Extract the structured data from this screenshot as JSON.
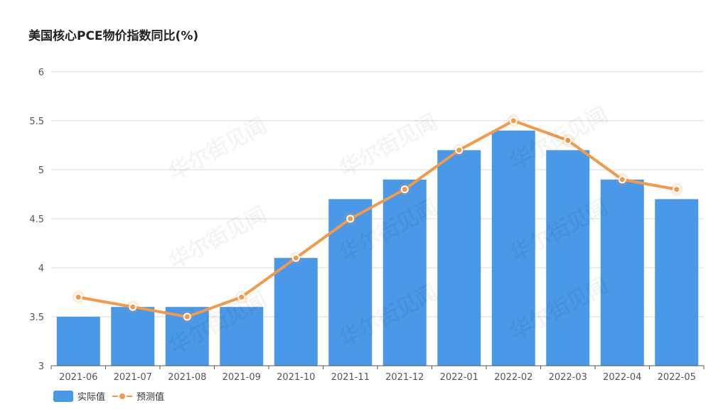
{
  "watermark": "华尔街见闻",
  "colors": {
    "bar": "#4a98e8",
    "line": "#f2994a",
    "grid": "#d9d9d9",
    "axis_text": "#555555"
  },
  "chart_data": {
    "type": "bar",
    "title": "美国核心PCE物价指数同比(%)",
    "categories": [
      "2021-06",
      "2021-07",
      "2021-08",
      "2021-09",
      "2021-10",
      "2021-11",
      "2021-12",
      "2022-01",
      "2022-02",
      "2022-03",
      "2022-04",
      "2022-05"
    ],
    "series": [
      {
        "name": "实际值",
        "type": "bar",
        "values": [
          3.5,
          3.6,
          3.6,
          3.6,
          4.1,
          4.7,
          4.9,
          5.2,
          5.4,
          5.2,
          4.9,
          4.7
        ]
      },
      {
        "name": "预测值",
        "type": "line",
        "values": [
          3.7,
          3.6,
          3.5,
          3.7,
          4.1,
          4.5,
          4.8,
          5.2,
          5.5,
          5.3,
          4.9,
          4.8
        ]
      }
    ],
    "ylim": [
      3,
      6
    ],
    "yticks": [
      3,
      3.5,
      4,
      4.5,
      5,
      5.5,
      6
    ],
    "ytick_labels": [
      "3",
      "3.5",
      "4",
      "4.5",
      "5",
      "5.5",
      "6"
    ],
    "grid": true,
    "legend_position": "bottom-left"
  }
}
